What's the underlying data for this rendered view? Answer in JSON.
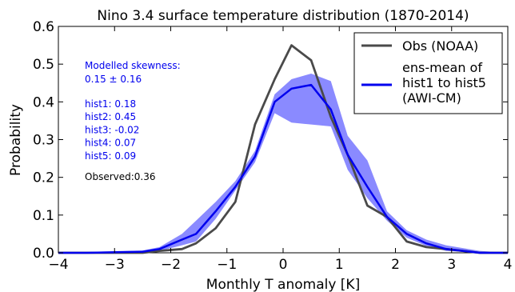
{
  "chart_data": {
    "type": "line",
    "title": "Nino 3.4 surface temperature distribution (1870-2014)",
    "xlabel": "Monthly T anomaly [K]",
    "ylabel": "Probability",
    "xlim": [
      -4,
      4
    ],
    "ylim": [
      0,
      0.6
    ],
    "xticks": [
      -4,
      -3,
      -2,
      -1,
      0,
      1,
      2,
      3,
      4
    ],
    "xtick_labels": [
      "−4",
      "−3",
      "−2",
      "−1",
      "0",
      "1",
      "2",
      "3",
      "4"
    ],
    "yticks": [
      0,
      0.1,
      0.2,
      0.3,
      0.4,
      0.5,
      0.6
    ],
    "ytick_labels": [
      "0.0",
      "0.1",
      "0.2",
      "0.3",
      "0.4",
      "0.5",
      "0.6"
    ],
    "grid": false,
    "legend_position": "top-right",
    "series": [
      {
        "name": "Obs (NOAA)",
        "color": "#4a4a4a",
        "x": [
          -4,
          -3.5,
          -2.9,
          -2.5,
          -2.2,
          -1.8,
          -1.55,
          -1.2,
          -0.85,
          -0.5,
          -0.15,
          0.15,
          0.5,
          0.85,
          1.15,
          1.5,
          1.85,
          2.2,
          2.55,
          2.9,
          3.5,
          4
        ],
        "y": [
          0.0,
          0.0,
          0.0,
          0.0,
          0.005,
          0.01,
          0.025,
          0.065,
          0.135,
          0.34,
          0.46,
          0.55,
          0.51,
          0.36,
          0.26,
          0.125,
          0.095,
          0.03,
          0.015,
          0.01,
          0.0,
          0.0
        ]
      },
      {
        "name": "ens-mean of hist1 to hist5 (AWI-CM)",
        "label_lines": [
          "ens-mean of",
          "hist1 to hist5",
          "(AWI-CM)"
        ],
        "color": "#0000ee",
        "x": [
          -4,
          -3.5,
          -2.9,
          -2.5,
          -2.2,
          -1.8,
          -1.55,
          -1.2,
          -0.85,
          -0.5,
          -0.15,
          0.15,
          0.5,
          0.85,
          1.15,
          1.5,
          1.85,
          2.2,
          2.55,
          2.9,
          3.5,
          4
        ],
        "y": [
          0.0,
          0.0,
          0.002,
          0.003,
          0.01,
          0.035,
          0.05,
          0.11,
          0.175,
          0.255,
          0.4,
          0.435,
          0.445,
          0.38,
          0.26,
          0.175,
          0.095,
          0.05,
          0.025,
          0.01,
          0.0,
          0.0
        ],
        "band_lower": [
          0.0,
          0.0,
          0.0,
          0.002,
          0.005,
          0.02,
          0.03,
          0.09,
          0.165,
          0.24,
          0.37,
          0.345,
          0.34,
          0.335,
          0.22,
          0.145,
          0.085,
          0.04,
          0.018,
          0.005,
          0.0,
          0.0
        ],
        "band_upper": [
          0.0,
          0.0,
          0.004,
          0.006,
          0.015,
          0.05,
          0.085,
          0.135,
          0.19,
          0.27,
          0.42,
          0.46,
          0.475,
          0.455,
          0.31,
          0.245,
          0.11,
          0.06,
          0.035,
          0.02,
          0.005,
          0.0
        ],
        "band_color": "#8a8aff"
      }
    ],
    "annotations": {
      "skewness_title": "Modelled skewness:",
      "skewness_value": "0.15 ± 0.16",
      "hist_lines": [
        "hist1: 0.18",
        "hist2: 0.45",
        "hist3: -0.02",
        "hist4: 0.07",
        "hist5: 0.09"
      ],
      "observed": "Observed:0.36",
      "color": "#0000ee",
      "observed_color": "#000000"
    }
  }
}
